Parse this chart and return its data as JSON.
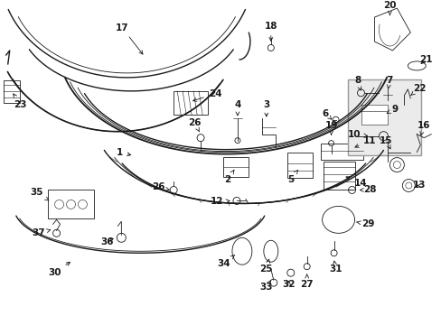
{
  "bg_color": "#ffffff",
  "line_color": "#1a1a1a",
  "fig_width": 4.89,
  "fig_height": 3.6,
  "dpi": 100,
  "label_fs": 7.5,
  "box_fill": "#e0e0e0",
  "box_edge": "#888888"
}
